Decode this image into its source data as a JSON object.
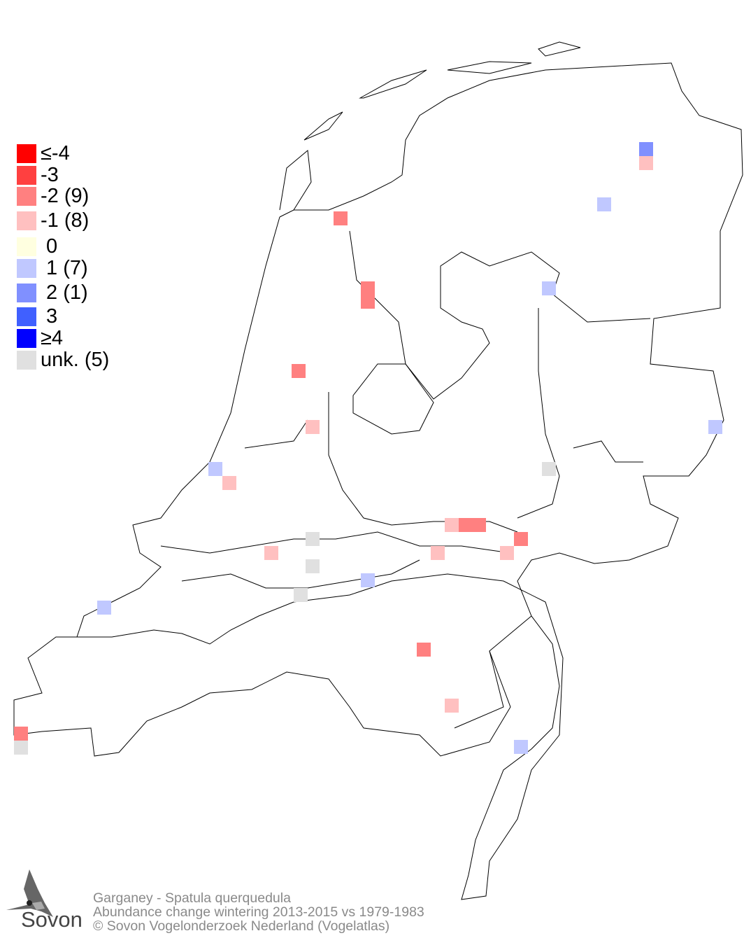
{
  "legend": {
    "items": [
      {
        "label": "≤-4",
        "color": "#ff0000"
      },
      {
        "label": "-3",
        "color": "#ff4040"
      },
      {
        "label": "-2 (9)",
        "color": "#ff8080"
      },
      {
        "label": "-1 (8)",
        "color": "#ffc0c0"
      },
      {
        "label": " 0",
        "color": "#ffffe0"
      },
      {
        "label": " 1 (7)",
        "color": "#c0c8ff"
      },
      {
        "label": " 2 (1)",
        "color": "#8090ff"
      },
      {
        "label": " 3",
        "color": "#4060ff"
      },
      {
        "label": "≥4",
        "color": "#0000ff"
      },
      {
        "label": "unk. (5)",
        "color": "#e0e0e0"
      }
    ]
  },
  "footer": {
    "line1": "Garganey - Spatula querquedula",
    "line2": "Abundance change wintering  2013-2015 vs 1979-1983",
    "line3": "© Sovon Vogelonderzoek Nederland (Vogelatlas)"
  },
  "logo": {
    "text": "Sovon"
  }
}
